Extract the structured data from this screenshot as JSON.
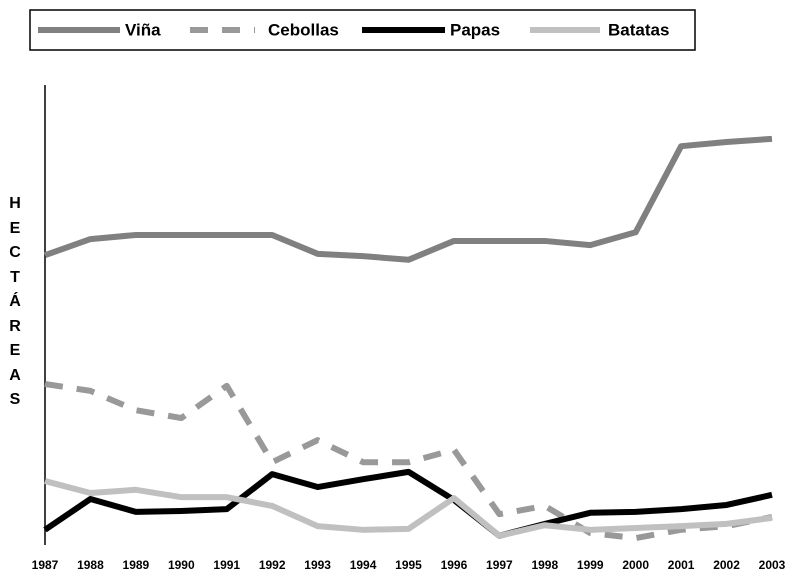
{
  "chart_data": {
    "type": "line",
    "y_label": "HECTÁREAS",
    "categories": [
      "1987",
      "1988",
      "1989",
      "1990",
      "1991",
      "1992",
      "1993",
      "1994",
      "1995",
      "1996",
      "1997",
      "1998",
      "1999",
      "2000",
      "2001",
      "2002",
      "2003"
    ],
    "ylim": [
      0,
      100
    ],
    "series": [
      {
        "name": "Viña",
        "color": "#808080",
        "values": [
          63.0,
          66.5,
          67.4,
          67.4,
          67.4,
          67.4,
          63.3,
          62.8,
          62.0,
          66.1,
          66.1,
          66.1,
          65.2,
          68.0,
          86.7,
          87.6,
          88.3
        ]
      },
      {
        "name": "Cebollas",
        "color": "#999999",
        "dashed": true,
        "values": [
          35.0,
          33.5,
          29.3,
          27.6,
          34.6,
          18.0,
          22.8,
          18.0,
          18.0,
          20.7,
          6.7,
          8.5,
          2.6,
          1.5,
          3.3,
          4.1,
          6.1
        ]
      },
      {
        "name": "Papas",
        "color": "#000000",
        "values": [
          3.3,
          10.0,
          7.2,
          7.4,
          7.8,
          15.4,
          12.6,
          14.3,
          15.9,
          9.8,
          2.0,
          4.6,
          7.0,
          7.2,
          7.8,
          8.7,
          10.9
        ]
      },
      {
        "name": "Batatas",
        "color": "#c0c0c0",
        "values": [
          13.9,
          11.3,
          12.0,
          10.4,
          10.4,
          8.5,
          4.1,
          3.3,
          3.5,
          10.2,
          2.0,
          4.3,
          3.3,
          3.7,
          4.1,
          4.6,
          5.9
        ]
      }
    ],
    "legend": "top"
  }
}
